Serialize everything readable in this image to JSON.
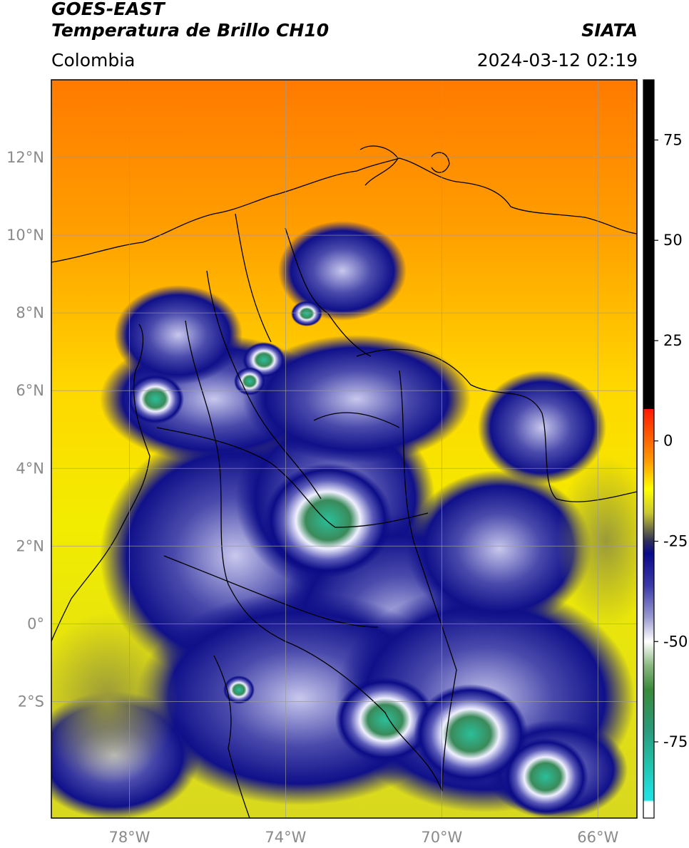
{
  "header": {
    "satellite": "GOES-EAST",
    "product": "Temperatura de Brillo CH10",
    "region": "Colombia",
    "source": "SIATA",
    "datetime": "2024-03-12 02:19"
  },
  "map": {
    "lon_range": [
      -80,
      -65
    ],
    "lat_range": [
      -5,
      14
    ],
    "lon_ticks": [
      {
        "value": -78,
        "label": "78°W"
      },
      {
        "value": -74,
        "label": "74°W"
      },
      {
        "value": -70,
        "label": "70°W"
      },
      {
        "value": -66,
        "label": "66°W"
      }
    ],
    "lat_ticks": [
      {
        "value": 12,
        "label": "12°N"
      },
      {
        "value": 10,
        "label": "10°N"
      },
      {
        "value": 8,
        "label": "8°N"
      },
      {
        "value": 6,
        "label": "6°N"
      },
      {
        "value": 4,
        "label": "4°N"
      },
      {
        "value": 2,
        "label": "2°N"
      },
      {
        "value": 0,
        "label": "0°"
      },
      {
        "value": -2,
        "label": "2°S"
      }
    ],
    "gridlines": true
  },
  "colorbar": {
    "range": [
      -94,
      90
    ],
    "ticks": [
      {
        "value": 75,
        "label": "75"
      },
      {
        "value": 50,
        "label": "50"
      },
      {
        "value": 25,
        "label": "25"
      },
      {
        "value": 0,
        "label": "0"
      },
      {
        "value": -25,
        "label": "-25"
      },
      {
        "value": -50,
        "label": "-50"
      },
      {
        "value": -75,
        "label": "-75"
      }
    ],
    "stops": [
      {
        "value": 90,
        "color": "#000000"
      },
      {
        "value": 8,
        "color": "#000000"
      },
      {
        "value": 7.9,
        "color": "#ff1a00"
      },
      {
        "value": -5,
        "color": "#ff9a00"
      },
      {
        "value": -12,
        "color": "#ffff00"
      },
      {
        "value": -18,
        "color": "#c8c832"
      },
      {
        "value": -22,
        "color": "#6e6e46"
      },
      {
        "value": -25,
        "color": "#2e2e5a"
      },
      {
        "value": -28,
        "color": "#0a0a8c"
      },
      {
        "value": -36,
        "color": "#3a3aa8"
      },
      {
        "value": -44,
        "color": "#9a9ad0"
      },
      {
        "value": -50,
        "color": "#ffffff"
      },
      {
        "value": -56,
        "color": "#8ab880"
      },
      {
        "value": -62,
        "color": "#3a8a3a"
      },
      {
        "value": -72,
        "color": "#2a9a7a"
      },
      {
        "value": -80,
        "color": "#20c0a8"
      },
      {
        "value": -88,
        "color": "#20e0e0"
      },
      {
        "value": -89.5,
        "color": "#20e0e0"
      },
      {
        "value": -90,
        "color": "#ffffff"
      },
      {
        "value": -94,
        "color": "#ffffff"
      }
    ]
  }
}
